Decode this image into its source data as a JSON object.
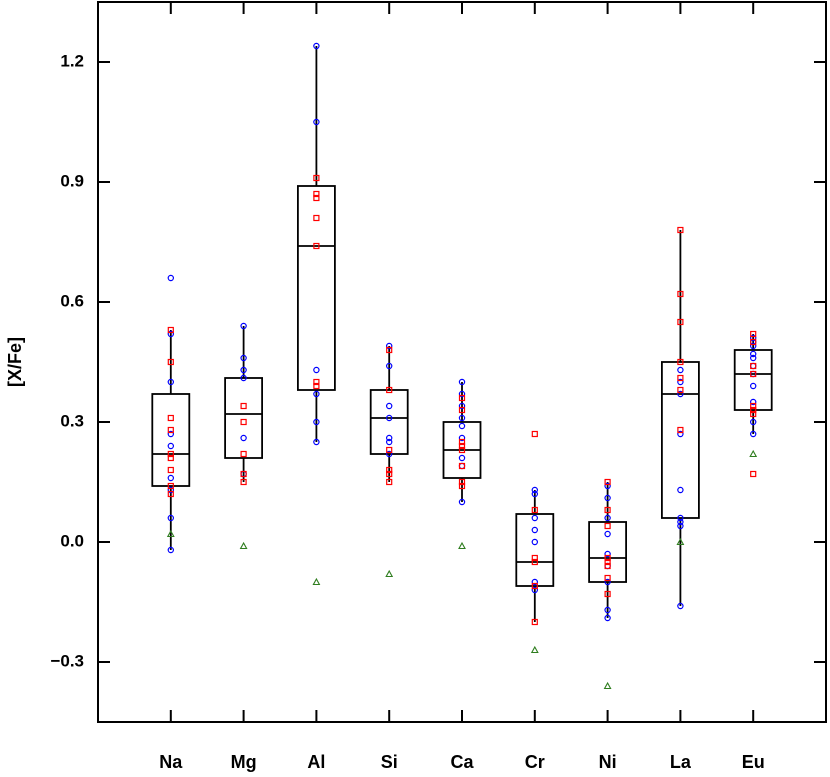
{
  "chart_data": {
    "type": "box",
    "y_label": "[X/Fe]",
    "categories": [
      "Na",
      "Mg",
      "Al",
      "Si",
      "Ca",
      "Cr",
      "Ni",
      "La",
      "Eu"
    ],
    "ylim": [
      -0.45,
      1.35
    ],
    "yticks": [
      1.2,
      0.9,
      0.6,
      0.3,
      {
        "value": 0,
        "label": "0.0"
      },
      {
        "value": -0.3,
        "label": "−0.3"
      }
    ],
    "boxes": [
      {
        "low": -0.02,
        "q1": 0.14,
        "median": 0.22,
        "q3": 0.37,
        "high": 0.53
      },
      {
        "low": 0.15,
        "q1": 0.21,
        "median": 0.32,
        "q3": 0.41,
        "high": 0.54
      },
      {
        "low": 0.25,
        "q1": 0.38,
        "median": 0.74,
        "q3": 0.89,
        "high": 1.24
      },
      {
        "low": 0.15,
        "q1": 0.22,
        "median": 0.31,
        "q3": 0.38,
        "high": 0.49
      },
      {
        "low": 0.1,
        "q1": 0.16,
        "median": 0.23,
        "q3": 0.3,
        "high": 0.4
      },
      {
        "low": -0.2,
        "q1": -0.11,
        "median": -0.05,
        "q3": 0.07,
        "high": 0.13
      },
      {
        "low": -0.19,
        "q1": -0.1,
        "median": -0.04,
        "q3": 0.05,
        "high": 0.15
      },
      {
        "low": -0.16,
        "q1": 0.06,
        "median": 0.37,
        "q3": 0.45,
        "high": 0.78
      },
      {
        "low": 0.27,
        "q1": 0.33,
        "median": 0.42,
        "q3": 0.48,
        "high": 0.52
      }
    ],
    "series": [
      {
        "marker": "circle",
        "color": "#0000ff",
        "values": [
          [
            0.66,
            0.52,
            0.4,
            0.27,
            0.24,
            0.16,
            0.13,
            0.06,
            -0.02
          ],
          [
            0.54,
            0.46,
            0.43,
            0.41,
            0.26,
            0.17
          ],
          [
            1.24,
            1.05,
            0.43,
            0.37,
            0.3,
            0.25
          ],
          [
            0.49,
            0.44,
            0.34,
            0.31,
            0.26,
            0.25,
            0.22
          ],
          [
            0.4,
            0.37,
            0.34,
            0.31,
            0.29,
            0.26,
            0.21,
            0.19,
            0.1
          ],
          [
            0.13,
            0.12,
            0.06,
            0.03,
            0.0,
            -0.1,
            -0.12
          ],
          [
            0.14,
            0.11,
            0.06,
            0.02,
            -0.03,
            -0.06,
            -0.1,
            -0.17,
            -0.19
          ],
          [
            0.43,
            0.4,
            0.37,
            0.27,
            0.13,
            0.06,
            0.05,
            0.04,
            -0.16
          ],
          [
            0.51,
            0.5,
            0.49,
            0.47,
            0.46,
            0.44,
            0.42,
            0.39,
            0.35,
            0.3,
            0.27
          ]
        ]
      },
      {
        "marker": "square",
        "color": "#ff0000",
        "values": [
          [
            0.53,
            0.45,
            0.31,
            0.28,
            0.22,
            0.21,
            0.18,
            0.14,
            0.12
          ],
          [
            0.34,
            0.3,
            0.22,
            0.17,
            0.15
          ],
          [
            0.91,
            0.87,
            0.86,
            0.81,
            0.74,
            0.4,
            0.39
          ],
          [
            0.48,
            0.38,
            0.23,
            0.18,
            0.17,
            0.15
          ],
          [
            0.36,
            0.33,
            0.25,
            0.24,
            0.23,
            0.19,
            0.15,
            0.14
          ],
          [
            0.27,
            0.08,
            -0.04,
            -0.05,
            -0.11,
            -0.2
          ],
          [
            0.15,
            0.08,
            0.04,
            -0.04,
            -0.05,
            -0.06,
            -0.09,
            -0.13
          ],
          [
            0.78,
            0.62,
            0.55,
            0.45,
            0.41,
            0.38,
            0.28
          ],
          [
            0.52,
            0.5,
            0.44,
            0.42,
            0.34,
            0.33,
            0.32,
            0.17
          ]
        ]
      },
      {
        "marker": "triangle",
        "color": "#2e7d1e",
        "values": [
          [
            0.02
          ],
          [
            -0.01
          ],
          [
            -0.1
          ],
          [
            -0.08
          ],
          [
            -0.01
          ],
          [
            -0.27
          ],
          [
            -0.36
          ],
          [
            0.0
          ],
          [
            0.22
          ]
        ]
      }
    ]
  }
}
